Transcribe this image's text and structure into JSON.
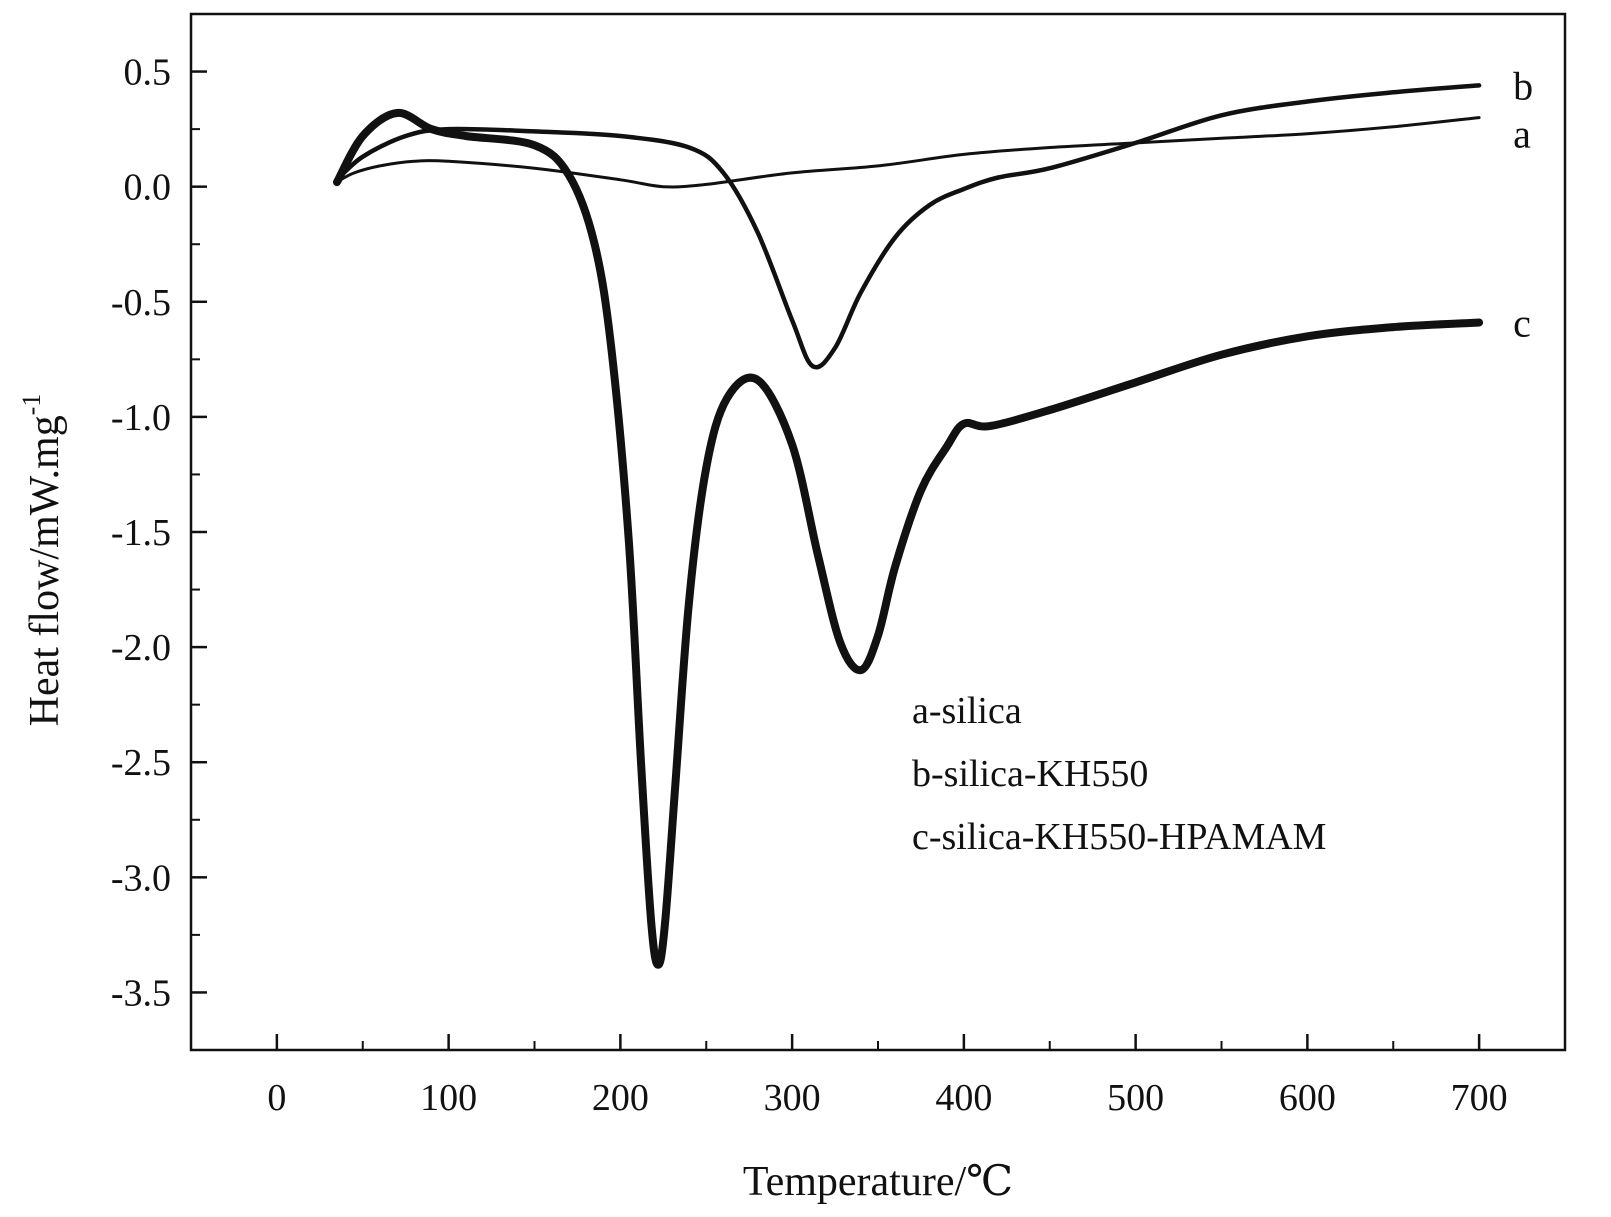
{
  "chart_data": {
    "type": "line",
    "xlabel": "Temperature/℃",
    "ylabel": "Heat flow/mW.mg",
    "ylabel_superscript": "-1",
    "xlim": [
      -50,
      750
    ],
    "ylim": [
      -3.75,
      0.75
    ],
    "x_ticks": [
      0,
      100,
      200,
      300,
      400,
      500,
      600,
      700
    ],
    "y_ticks": [
      0.5,
      0.0,
      -0.5,
      -1.0,
      -1.5,
      -2.0,
      -2.5,
      -3.0,
      -3.5
    ],
    "x_tick_labels": [
      "0",
      "100",
      "200",
      "300",
      "400",
      "500",
      "600",
      "700"
    ],
    "y_tick_labels": [
      "0.5",
      "0.0",
      "-0.5",
      "-1.0",
      "-1.5",
      "-2.0",
      "-2.5",
      "-3.0",
      "-3.5"
    ],
    "grid": false,
    "legend": {
      "placement": "center-right",
      "entries": [
        "a-silica",
        "b-silica-KH550",
        "c-silica-KH550-HPAMAM"
      ]
    },
    "series": [
      {
        "name": "a",
        "color": "#111111",
        "x": [
          35,
          45,
          60,
          80,
          100,
          150,
          200,
          225,
          250,
          300,
          350,
          400,
          450,
          500,
          550,
          600,
          650,
          700
        ],
        "y": [
          0.02,
          0.06,
          0.09,
          0.11,
          0.11,
          0.08,
          0.03,
          0.0,
          0.01,
          0.06,
          0.09,
          0.14,
          0.17,
          0.19,
          0.21,
          0.23,
          0.26,
          0.3
        ]
      },
      {
        "name": "b",
        "color": "#111111",
        "x": [
          35,
          50,
          75,
          100,
          150,
          200,
          240,
          260,
          280,
          300,
          312,
          325,
          340,
          360,
          380,
          400,
          420,
          450,
          500,
          550,
          600,
          650,
          700
        ],
        "y": [
          0.03,
          0.13,
          0.22,
          0.25,
          0.24,
          0.22,
          0.17,
          0.06,
          -0.2,
          -0.58,
          -0.78,
          -0.7,
          -0.46,
          -0.22,
          -0.08,
          -0.01,
          0.04,
          0.08,
          0.19,
          0.31,
          0.37,
          0.41,
          0.44
        ]
      },
      {
        "name": "c",
        "color": "#111111",
        "x": [
          35,
          50,
          70,
          90,
          110,
          150,
          170,
          185,
          195,
          205,
          212,
          218,
          222,
          226,
          232,
          240,
          250,
          262,
          280,
          300,
          315,
          328,
          340,
          350,
          360,
          375,
          390,
          400,
          415,
          450,
          500,
          550,
          600,
          650,
          700
        ],
        "y": [
          0.02,
          0.22,
          0.32,
          0.25,
          0.22,
          0.18,
          0.05,
          -0.25,
          -0.72,
          -1.55,
          -2.5,
          -3.2,
          -3.38,
          -3.2,
          -2.6,
          -1.8,
          -1.22,
          -0.92,
          -0.84,
          -1.12,
          -1.6,
          -1.98,
          -2.1,
          -1.95,
          -1.65,
          -1.32,
          -1.13,
          -1.03,
          -1.04,
          -0.97,
          -0.85,
          -0.73,
          -0.65,
          -0.61,
          -0.59
        ]
      }
    ]
  }
}
